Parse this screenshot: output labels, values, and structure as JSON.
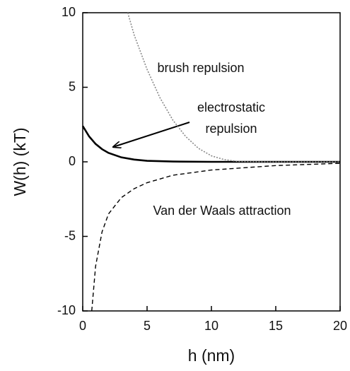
{
  "chart_data": {
    "type": "line",
    "xlabel": "h (nm)",
    "ylabel": "W(h) (kT)",
    "xlim": [
      0,
      20
    ],
    "xticks": [
      0,
      5,
      10,
      15,
      20
    ],
    "ylim": [
      -10,
      10
    ],
    "yticks": [
      -10,
      -5,
      0,
      5,
      10
    ],
    "series": [
      {
        "color": "#000000",
        "style": "solid",
        "x": [
          0,
          0.5,
          1,
          1.5,
          2,
          3,
          4,
          5,
          7,
          10,
          20
        ],
        "values": [
          2.4,
          1.7,
          1.2,
          0.85,
          0.6,
          0.3,
          0.15,
          0.07,
          0.02,
          0,
          0
        ]
      },
      {
        "color": "#888888",
        "style": "dotted",
        "x": [
          3.5,
          4,
          5,
          6,
          7,
          8,
          9,
          10,
          11,
          12,
          14,
          20
        ],
        "values": [
          10,
          8.5,
          6.2,
          4.3,
          2.8,
          1.7,
          0.9,
          0.4,
          0.15,
          0.03,
          0,
          0
        ]
      },
      {
        "color": "#000000",
        "style": "dashed",
        "x": [
          0.7,
          1,
          1.5,
          2,
          3,
          4,
          5,
          7,
          10,
          15,
          20
        ],
        "values": [
          -10,
          -7,
          -4.7,
          -3.5,
          -2.4,
          -1.8,
          -1.4,
          -0.9,
          -0.55,
          -0.25,
          -0.1
        ]
      }
    ],
    "annotations": [
      "brush repulsion",
      "electrostatic",
      "repulsion",
      "Van der Waals attraction"
    ]
  }
}
